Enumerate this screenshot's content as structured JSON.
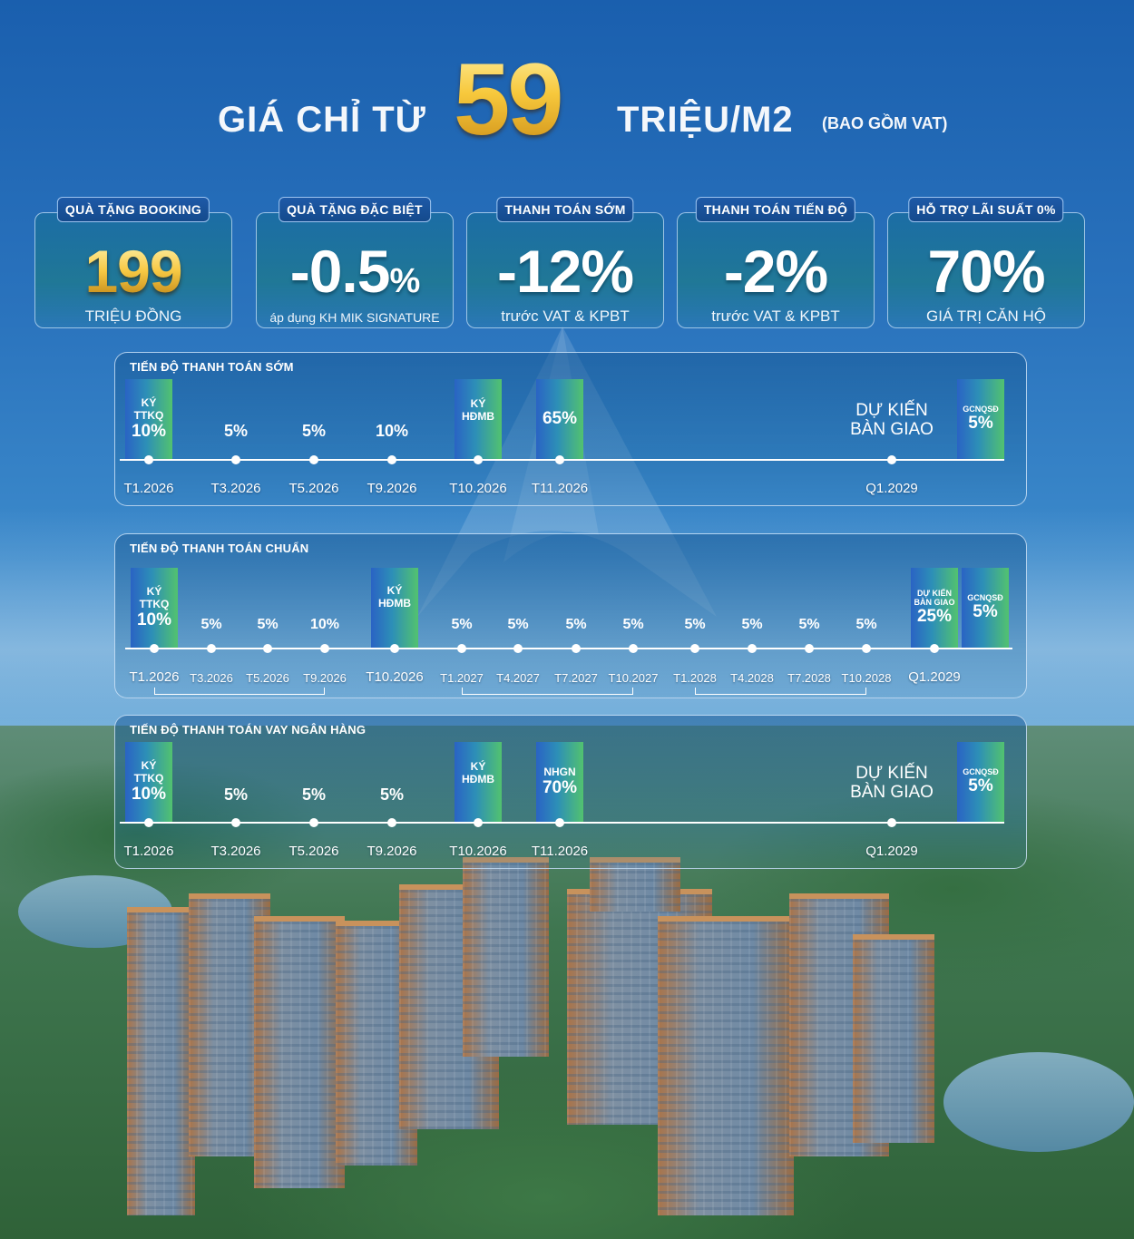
{
  "headline": {
    "prefix": "GIÁ CHỈ TỪ",
    "number": "59",
    "unit": "TRIỆU/M2",
    "note": "(BAO GỒM VAT)"
  },
  "offers": [
    {
      "tag": "QUÀ TẶNG BOOKING",
      "value": "199",
      "sub": "TRIỆU ĐỒNG"
    },
    {
      "tag": "QUÀ TẶNG ĐẶC BIỆT",
      "value": "-0.5",
      "value_suffix": "%",
      "sub": "áp dụng KH MIK SIGNATURE"
    },
    {
      "tag": "THANH TOÁN SỚM",
      "value": "-12%",
      "sub": "trước VAT & KPBT"
    },
    {
      "tag": "THANH TOÁN TIẾN ĐỘ",
      "value": "-2%",
      "sub": "trước VAT & KPBT"
    },
    {
      "tag": "HỖ TRỢ LÃI SUẤT 0%",
      "value": "70%",
      "sub": "GIÁ TRỊ CĂN HỘ"
    }
  ],
  "timelines": {
    "early": {
      "title": "TIẾN ĐỘ THANH TOÁN SỚM",
      "bar1": {
        "label1": "KÝ",
        "label2": "TTKQ",
        "pct": "10%"
      },
      "pct_t3": "5%",
      "pct_t5": "5%",
      "pct_t9": "10%",
      "bar_hdmb": {
        "label1": "KÝ",
        "label2": "HĐMB"
      },
      "bar_65": {
        "pct": "65%"
      },
      "handover": {
        "line1": "DỰ KIẾN",
        "line2": "BÀN GIAO"
      },
      "bar_gcn": {
        "label": "GCNQSĐ",
        "pct": "5%"
      },
      "dates": [
        "T1.2026",
        "T3.2026",
        "T5.2026",
        "T9.2026",
        "T10.2026",
        "T11.2026",
        "Q1.2029"
      ]
    },
    "standard": {
      "title": "TIẾN ĐỘ THANH TOÁN CHUẨN",
      "bar1": {
        "label1": "KÝ",
        "label2": "TTKQ",
        "pct": "10%"
      },
      "pcts_a": [
        "5%",
        "5%",
        "10%"
      ],
      "bar_hdmb": {
        "label1": "KÝ",
        "label2": "HĐMB"
      },
      "pcts_b": [
        "5%",
        "5%",
        "5%",
        "5%",
        "5%",
        "5%",
        "5%",
        "5%"
      ],
      "bar_handover": {
        "label1": "DỰ KIẾN",
        "label2": "BÀN GIAO",
        "pct": "25%"
      },
      "bar_gcn": {
        "label": "GCNQSĐ",
        "pct": "5%"
      },
      "dates": [
        "T1.2026",
        "T3.2026",
        "T5.2026",
        "T9.2026",
        "T10.2026",
        "T1.2027",
        "T4.2027",
        "T7.2027",
        "T10.2027",
        "T1.2028",
        "T4.2028",
        "T7.2028",
        "T10.2028",
        "Q1.2029"
      ]
    },
    "loan": {
      "title": "TIẾN ĐỘ THANH TOÁN VAY NGÂN HÀNG",
      "bar1": {
        "label1": "KÝ",
        "label2": "TTKQ",
        "pct": "10%"
      },
      "pct_t3": "5%",
      "pct_t5": "5%",
      "pct_t9": "5%",
      "bar_hdmb": {
        "label1": "KÝ",
        "label2": "HĐMB"
      },
      "bar_nhgn": {
        "label": "NHGN",
        "pct": "70%"
      },
      "handover": {
        "line1": "DỰ KIẾN",
        "line2": "BÀN GIAO"
      },
      "bar_gcn": {
        "label": "GCNQSĐ",
        "pct": "5%"
      },
      "dates": [
        "T1.2026",
        "T3.2026",
        "T5.2026",
        "T9.2026",
        "T10.2026",
        "T11.2026",
        "Q1.2029"
      ]
    }
  }
}
